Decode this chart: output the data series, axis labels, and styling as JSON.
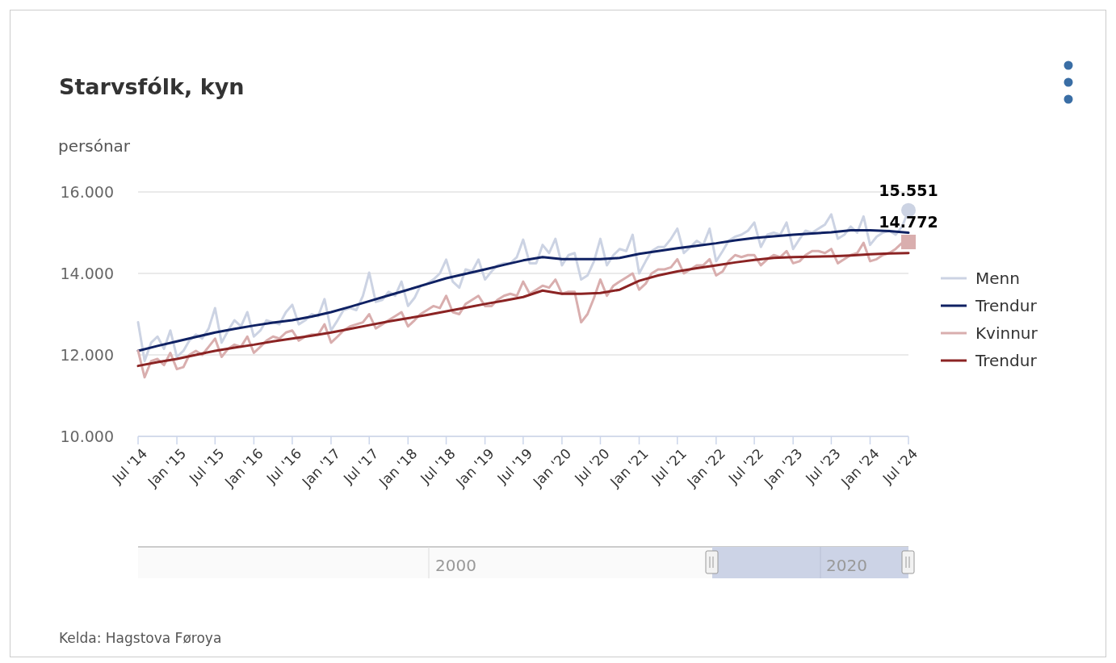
{
  "chart_data": {
    "type": "line",
    "title": "Starvsfólk, kyn",
    "ylabel": "persónar",
    "x": [
      "2014-07",
      "2014-08",
      "2014-09",
      "2014-10",
      "2014-11",
      "2014-12",
      "2015-01",
      "2015-02",
      "2015-03",
      "2015-04",
      "2015-05",
      "2015-06",
      "2015-07",
      "2015-08",
      "2015-09",
      "2015-10",
      "2015-11",
      "2015-12",
      "2016-01",
      "2016-02",
      "2016-03",
      "2016-04",
      "2016-05",
      "2016-06",
      "2016-07",
      "2016-08",
      "2016-09",
      "2016-10",
      "2016-11",
      "2016-12",
      "2017-01",
      "2017-02",
      "2017-03",
      "2017-04",
      "2017-05",
      "2017-06",
      "2017-07",
      "2017-08",
      "2017-09",
      "2017-10",
      "2017-11",
      "2017-12",
      "2018-01",
      "2018-02",
      "2018-03",
      "2018-04",
      "2018-05",
      "2018-06",
      "2018-07",
      "2018-08",
      "2018-09",
      "2018-10",
      "2018-11",
      "2018-12",
      "2019-01",
      "2019-02",
      "2019-03",
      "2019-04",
      "2019-05",
      "2019-06",
      "2019-07",
      "2019-08",
      "2019-09",
      "2019-10",
      "2019-11",
      "2019-12",
      "2020-01",
      "2020-02",
      "2020-03",
      "2020-04",
      "2020-05",
      "2020-06",
      "2020-07",
      "2020-08",
      "2020-09",
      "2020-10",
      "2020-11",
      "2020-12",
      "2021-01",
      "2021-02",
      "2021-03",
      "2021-04",
      "2021-05",
      "2021-06",
      "2021-07",
      "2021-08",
      "2021-09",
      "2021-10",
      "2021-11",
      "2021-12",
      "2022-01",
      "2022-02",
      "2022-03",
      "2022-04",
      "2022-05",
      "2022-06",
      "2022-07",
      "2022-08",
      "2022-09",
      "2022-10",
      "2022-11",
      "2022-12",
      "2023-01",
      "2023-02",
      "2023-03",
      "2023-04",
      "2023-05",
      "2023-06",
      "2023-07",
      "2023-08",
      "2023-09",
      "2023-10",
      "2023-11",
      "2023-12",
      "2024-01",
      "2024-02",
      "2024-03",
      "2024-04",
      "2024-05",
      "2024-06",
      "2024-07"
    ],
    "series": [
      {
        "name": "Menn",
        "color": "#ccd3e3",
        "values": [
          12800,
          11850,
          12300,
          12450,
          12150,
          12600,
          11950,
          12100,
          12350,
          12500,
          12400,
          12650,
          13150,
          12300,
          12600,
          12850,
          12700,
          13050,
          12450,
          12600,
          12850,
          12800,
          12750,
          13050,
          13230,
          12750,
          12850,
          13000,
          12950,
          13370,
          12600,
          12850,
          13100,
          13150,
          13100,
          13450,
          14020,
          13300,
          13350,
          13550,
          13450,
          13800,
          13200,
          13400,
          13700,
          13750,
          13850,
          14000,
          14340,
          13800,
          13650,
          14100,
          14050,
          14340,
          13850,
          14050,
          14200,
          14250,
          14250,
          14400,
          14830,
          14250,
          14250,
          14700,
          14500,
          14850,
          14200,
          14450,
          14500,
          13850,
          13950,
          14300,
          14850,
          14200,
          14450,
          14600,
          14550,
          14950,
          14000,
          14300,
          14550,
          14650,
          14650,
          14850,
          15100,
          14500,
          14650,
          14800,
          14700,
          15100,
          14300,
          14550,
          14800,
          14900,
          14950,
          15050,
          15250,
          14650,
          14950,
          15000,
          14950,
          15250,
          14600,
          14850,
          15050,
          15000,
          15100,
          15200,
          15450,
          14850,
          14950,
          15150,
          15000,
          15400,
          14700,
          14900,
          15000,
          15050,
          14950,
          15150,
          15551
        ],
        "value_labels": [
          null,
          null,
          null,
          null,
          null,
          null,
          null,
          null,
          null,
          null,
          null,
          null,
          null,
          null,
          null,
          null,
          null,
          null,
          null,
          null,
          null,
          null,
          null,
          null,
          null,
          null,
          null,
          null,
          null,
          null,
          null,
          null,
          null,
          null,
          null,
          null,
          null,
          null,
          null,
          null,
          null,
          null,
          null,
          null,
          null,
          null,
          null,
          null,
          null,
          null,
          null,
          null,
          null,
          null,
          null,
          null,
          null,
          null,
          null,
          null,
          null,
          null,
          null,
          null,
          null,
          null,
          null,
          null,
          null,
          null,
          null,
          null,
          null,
          null,
          null,
          null,
          null,
          null,
          null,
          null,
          null,
          null,
          null,
          null,
          null,
          null,
          null,
          null,
          null,
          null,
          null,
          null,
          null,
          null,
          null,
          null,
          null,
          null,
          null,
          null,
          null,
          null,
          null,
          null,
          null,
          null,
          null,
          null,
          null,
          null,
          null,
          null,
          null,
          null,
          null,
          null,
          null,
          null,
          null,
          null,
          "15.551"
        ]
      },
      {
        "name": "Trendur",
        "color": "#0f2163",
        "x": [
          "2014-07",
          "2014-10",
          "2015-01",
          "2015-04",
          "2015-07",
          "2015-10",
          "2016-01",
          "2016-04",
          "2016-07",
          "2016-10",
          "2017-01",
          "2017-04",
          "2017-07",
          "2017-10",
          "2018-01",
          "2018-04",
          "2018-07",
          "2018-10",
          "2019-01",
          "2019-04",
          "2019-07",
          "2019-10",
          "2020-01",
          "2020-04",
          "2020-07",
          "2020-10",
          "2021-01",
          "2021-04",
          "2021-07",
          "2021-10",
          "2022-01",
          "2022-04",
          "2022-07",
          "2022-10",
          "2023-01",
          "2023-04",
          "2023-07",
          "2023-10",
          "2024-01",
          "2024-04",
          "2024-07"
        ],
        "values": [
          12100,
          12220,
          12330,
          12440,
          12550,
          12640,
          12720,
          12790,
          12850,
          12940,
          13050,
          13180,
          13320,
          13460,
          13600,
          13740,
          13880,
          13990,
          14100,
          14210,
          14320,
          14400,
          14350,
          14350,
          14350,
          14380,
          14480,
          14550,
          14620,
          14680,
          14740,
          14810,
          14870,
          14910,
          14950,
          14980,
          15010,
          15060,
          15060,
          15040,
          15000
        ]
      },
      {
        "name": "Kvinnur",
        "color": "#d9aeae",
        "values": [
          12100,
          11450,
          11850,
          11900,
          11750,
          12050,
          11650,
          11700,
          12000,
          12100,
          12000,
          12200,
          12400,
          11950,
          12150,
          12250,
          12200,
          12450,
          12050,
          12200,
          12350,
          12450,
          12400,
          12550,
          12600,
          12350,
          12450,
          12500,
          12500,
          12750,
          12300,
          12450,
          12600,
          12700,
          12750,
          12800,
          13000,
          12650,
          12750,
          12850,
          12950,
          13050,
          12700,
          12850,
          13000,
          13100,
          13200,
          13150,
          13450,
          13050,
          13000,
          13250,
          13350,
          13450,
          13200,
          13200,
          13350,
          13450,
          13500,
          13450,
          13800,
          13500,
          13600,
          13700,
          13650,
          13850,
          13500,
          13550,
          13550,
          12800,
          13000,
          13400,
          13850,
          13450,
          13700,
          13800,
          13900,
          14000,
          13600,
          13750,
          14000,
          14100,
          14100,
          14150,
          14350,
          14000,
          14100,
          14200,
          14200,
          14350,
          13950,
          14050,
          14300,
          14450,
          14400,
          14450,
          14450,
          14200,
          14350,
          14450,
          14400,
          14550,
          14250,
          14300,
          14450,
          14550,
          14550,
          14500,
          14600,
          14250,
          14350,
          14450,
          14500,
          14750,
          14300,
          14350,
          14450,
          14500,
          14600,
          14750,
          14772
        ],
        "value_labels": [
          null,
          null,
          null,
          null,
          null,
          null,
          null,
          null,
          null,
          null,
          null,
          null,
          null,
          null,
          null,
          null,
          null,
          null,
          null,
          null,
          null,
          null,
          null,
          null,
          null,
          null,
          null,
          null,
          null,
          null,
          null,
          null,
          null,
          null,
          null,
          null,
          null,
          null,
          null,
          null,
          null,
          null,
          null,
          null,
          null,
          null,
          null,
          null,
          null,
          null,
          null,
          null,
          null,
          null,
          null,
          null,
          null,
          null,
          null,
          null,
          null,
          null,
          null,
          null,
          null,
          null,
          null,
          null,
          null,
          null,
          null,
          null,
          null,
          null,
          null,
          null,
          null,
          null,
          null,
          null,
          null,
          null,
          null,
          null,
          null,
          null,
          null,
          null,
          null,
          null,
          null,
          null,
          null,
          null,
          null,
          null,
          null,
          null,
          null,
          null,
          null,
          null,
          null,
          null,
          null,
          null,
          null,
          null,
          null,
          null,
          null,
          null,
          null,
          null,
          null,
          null,
          null,
          null,
          null,
          null,
          "14.772"
        ]
      },
      {
        "name": "Trendur",
        "color": "#8b2323",
        "x": [
          "2014-07",
          "2014-10",
          "2015-01",
          "2015-04",
          "2015-07",
          "2015-10",
          "2016-01",
          "2016-04",
          "2016-07",
          "2016-10",
          "2017-01",
          "2017-04",
          "2017-07",
          "2017-10",
          "2018-01",
          "2018-04",
          "2018-07",
          "2018-10",
          "2019-01",
          "2019-04",
          "2019-07",
          "2019-10",
          "2020-01",
          "2020-04",
          "2020-07",
          "2020-10",
          "2021-01",
          "2021-04",
          "2021-07",
          "2021-10",
          "2022-01",
          "2022-04",
          "2022-07",
          "2022-10",
          "2023-01",
          "2023-04",
          "2023-07",
          "2023-10",
          "2024-01",
          "2024-04",
          "2024-07"
        ],
        "values": [
          11730,
          11820,
          11900,
          12000,
          12100,
          12180,
          12250,
          12330,
          12400,
          12470,
          12550,
          12640,
          12730,
          12820,
          12900,
          12980,
          13070,
          13160,
          13250,
          13330,
          13420,
          13580,
          13500,
          13500,
          13520,
          13600,
          13820,
          13950,
          14050,
          14130,
          14200,
          14270,
          14330,
          14380,
          14400,
          14410,
          14420,
          14440,
          14470,
          14490,
          14500
        ]
      }
    ],
    "xlim": [
      "2014-07",
      "2024-07"
    ],
    "xticks": [
      {
        "value": "2014-07",
        "label": "Jul '14"
      },
      {
        "value": "2015-01",
        "label": "Jan '15"
      },
      {
        "value": "2015-07",
        "label": "Jul '15"
      },
      {
        "value": "2016-01",
        "label": "Jan '16"
      },
      {
        "value": "2016-07",
        "label": "Jul '16"
      },
      {
        "value": "2017-01",
        "label": "Jan '17"
      },
      {
        "value": "2017-07",
        "label": "Jul '17"
      },
      {
        "value": "2018-01",
        "label": "Jan '18"
      },
      {
        "value": "2018-07",
        "label": "Jul '18"
      },
      {
        "value": "2019-01",
        "label": "Jan '19"
      },
      {
        "value": "2019-07",
        "label": "Jul '19"
      },
      {
        "value": "2020-01",
        "label": "Jan '20"
      },
      {
        "value": "2020-07",
        "label": "Jul '20"
      },
      {
        "value": "2021-01",
        "label": "Jan '21"
      },
      {
        "value": "2021-07",
        "label": "Jul '21"
      },
      {
        "value": "2022-01",
        "label": "Jan '22"
      },
      {
        "value": "2022-07",
        "label": "Jul '22"
      },
      {
        "value": "2023-01",
        "label": "Jan '23"
      },
      {
        "value": "2023-07",
        "label": "Jul '23"
      },
      {
        "value": "2024-01",
        "label": "Jan '24"
      },
      {
        "value": "2024-07",
        "label": "Jul '24"
      }
    ],
    "ylim": [
      10000,
      16000
    ],
    "yticks": [
      {
        "value": 10000,
        "label": "10.000"
      },
      {
        "value": 12000,
        "label": "12.000"
      },
      {
        "value": 14000,
        "label": "14.000"
      },
      {
        "value": 16000,
        "label": "16.000"
      }
    ],
    "grid": "y",
    "legend": "right",
    "line_style": "solid",
    "annotations": [
      "Kelda: Hagstova Føroya",
      "2000",
      "2020"
    ]
  }
}
